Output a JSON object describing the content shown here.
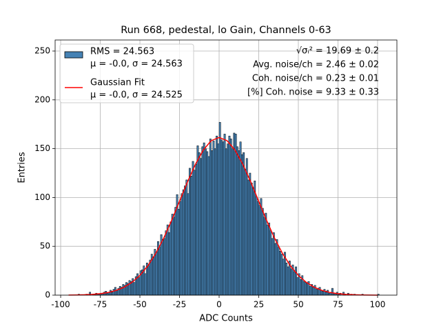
{
  "chart_data": {
    "type": "histogram",
    "title": "Run 668, pedestal, lo Gain, Channels 0-63",
    "x_label": "ADC Counts",
    "y_label": "Entries",
    "xlim": [
      -103.5,
      112.2
    ],
    "ylim": [
      0,
      261.3
    ],
    "xticks": [
      -100,
      -75,
      -50,
      -25,
      0,
      25,
      50,
      75,
      100
    ],
    "yticks": [
      0,
      50,
      100,
      150,
      200,
      250
    ],
    "grid": true,
    "legend": "upper left",
    "bins": [
      -94,
      -93,
      -92,
      -91,
      -90,
      -89,
      -88,
      -87,
      -86,
      -85,
      -84,
      -83,
      -82,
      -81,
      -80,
      -79,
      -78,
      -77,
      -76,
      -75,
      -74,
      -73,
      -72,
      -71,
      -70,
      -69,
      -68,
      -67,
      -66,
      -65,
      -64,
      -63,
      -62,
      -61,
      -60,
      -59,
      -58,
      -57,
      -56,
      -55,
      -54,
      -53,
      -52,
      -51,
      -50,
      -49,
      -48,
      -47,
      -46,
      -45,
      -44,
      -43,
      -42,
      -41,
      -40,
      -39,
      -38,
      -37,
      -36,
      -35,
      -34,
      -33,
      -32,
      -31,
      -30,
      -29,
      -28,
      -27,
      -26,
      -25,
      -24,
      -23,
      -22,
      -21,
      -20,
      -19,
      -18,
      -17,
      -16,
      -15,
      -14,
      -13,
      -12,
      -11,
      -10,
      -9,
      -8,
      -7,
      -6,
      -5,
      -4,
      -3,
      -2,
      -1,
      0,
      1,
      2,
      3,
      4,
      5,
      6,
      7,
      8,
      9,
      10,
      11,
      12,
      13,
      14,
      15,
      16,
      17,
      18,
      19,
      20,
      21,
      22,
      23,
      24,
      25,
      26,
      27,
      28,
      29,
      30,
      31,
      32,
      33,
      34,
      35,
      36,
      37,
      38,
      39,
      40,
      41,
      42,
      43,
      44,
      45,
      46,
      47,
      48,
      49,
      50,
      51,
      52,
      53,
      54,
      55,
      56,
      57,
      58,
      59,
      60,
      61,
      62,
      63,
      64,
      65,
      66,
      67,
      68,
      69,
      70,
      71,
      72,
      73,
      74,
      75,
      76,
      77,
      78,
      79,
      80,
      81,
      82,
      83,
      84,
      85,
      86,
      87,
      88,
      89,
      90,
      91,
      92,
      93,
      94,
      95,
      96,
      97,
      98,
      99,
      100,
      101
    ],
    "counts": [
      0,
      0,
      0,
      0,
      0,
      1,
      0,
      0,
      0,
      0,
      1,
      0,
      3,
      0,
      1,
      1,
      2,
      1,
      1,
      2,
      1,
      3,
      4,
      2,
      3,
      5,
      3,
      6,
      8,
      5,
      7,
      9,
      8,
      11,
      10,
      13,
      12,
      15,
      14,
      17,
      13,
      19,
      22,
      18,
      25,
      26,
      30,
      22,
      33,
      30,
      36,
      42,
      39,
      47,
      44,
      55,
      49,
      62,
      57,
      58,
      66,
      72,
      64,
      75,
      83,
      80,
      90,
      103,
      88,
      96,
      104,
      108,
      112,
      118,
      104,
      130,
      122,
      137,
      128,
      134,
      153,
      146,
      140,
      152,
      156,
      150,
      147,
      142,
      160,
      148,
      158,
      150,
      163,
      155,
      177,
      159,
      157,
      165,
      150,
      155,
      163,
      160,
      150,
      166,
      165,
      152,
      148,
      157,
      144,
      146,
      129,
      140,
      118,
      125,
      115,
      110,
      117,
      101,
      96,
      92,
      99,
      89,
      80,
      84,
      72,
      74,
      66,
      58,
      64,
      53,
      57,
      49,
      45,
      42,
      37,
      44,
      33,
      29,
      35,
      27,
      31,
      24,
      29,
      18,
      22,
      16,
      20,
      14,
      13,
      12,
      14,
      9,
      11,
      8,
      10,
      6,
      7,
      8,
      5,
      4,
      6,
      3,
      5,
      2,
      3,
      7,
      2,
      1,
      3,
      1,
      2,
      0,
      3,
      1,
      0,
      2,
      0,
      1,
      0,
      1,
      0,
      0,
      0,
      0,
      1,
      0,
      0,
      0,
      0,
      0,
      0,
      0,
      0,
      0,
      1
    ],
    "color": "#4682b4",
    "legend_entries": [
      {
        "name": "RMS = 24.563",
        "detail": "μ = -0.0, σ = 24.563"
      },
      {
        "name": "Gaussian Fit",
        "detail": "μ = -0.0, σ = 24.525"
      }
    ],
    "fit": {
      "color": "#ff0000",
      "x": [
        -95,
        -90,
        -85,
        -80,
        -75,
        -70,
        -65,
        -60,
        -55,
        -50,
        -45,
        -40,
        -35,
        -30,
        -25,
        -20,
        -15,
        -10,
        -5,
        0,
        5,
        10,
        15,
        20,
        25,
        30,
        35,
        40,
        45,
        50,
        55,
        60,
        65,
        70,
        75,
        80,
        85,
        90,
        95,
        100
      ],
      "y": [
        0.1,
        0.2,
        0.4,
        0.8,
        1.5,
        2.7,
        4.8,
        8.1,
        13.1,
        20.2,
        30.0,
        42.7,
        58.3,
        76.4,
        96.1,
        115.8,
        133.9,
        148.6,
        158.2,
        161.5,
        158.2,
        148.6,
        133.9,
        115.8,
        96.1,
        76.4,
        58.3,
        42.7,
        30.0,
        20.2,
        13.1,
        8.1,
        4.8,
        2.7,
        1.5,
        0.8,
        0.4,
        0.2,
        0.1,
        0.0
      ]
    },
    "annotations": [
      "√σᵢ² = 19.69 ± 0.2",
      "Avg. noise/ch = 2.46 ± 0.02",
      "Coh. noise/ch = 0.23 ± 0.01",
      "[%] Coh. noise = 9.33 ± 0.33"
    ]
  }
}
